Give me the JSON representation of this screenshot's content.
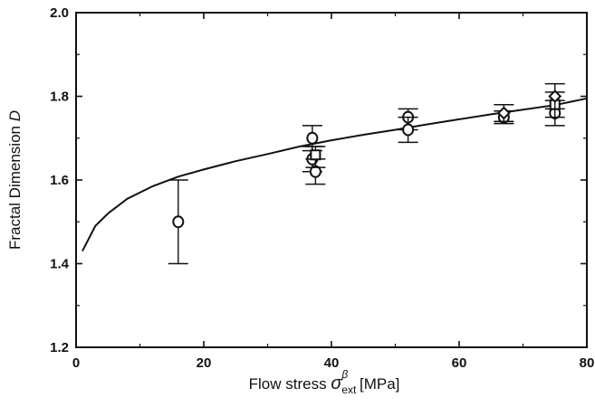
{
  "chart_data": {
    "type": "scatter",
    "xlabel": "Flow stress",
    "xlabel_symbol": "σ",
    "xlabel_sub": "ext",
    "xlabel_sup": "β",
    "xlabel_unit": "[MPa]",
    "ylabel": "Fractal Dimension",
    "ylabel_symbol": "D",
    "xlim": [
      0,
      80
    ],
    "ylim": [
      1.2,
      2.0
    ],
    "x_ticks": [
      0,
      20,
      40,
      60,
      80
    ],
    "y_ticks": [
      1.2,
      1.4,
      1.6,
      1.8,
      2.0
    ],
    "x_tick_labels": [
      "0",
      "20",
      "40",
      "60",
      "80"
    ],
    "y_tick_labels": [
      "1.2",
      "1.4",
      "1.6",
      "1.8",
      "2.0"
    ],
    "grid": false,
    "series": [
      {
        "marker": "circle",
        "points": [
          {
            "x": 16,
            "y": 1.5,
            "err_low": 1.4,
            "err_high": 1.6
          },
          {
            "x": 37,
            "y": 1.7,
            "err_low": 1.67,
            "err_high": 1.73
          },
          {
            "x": 37,
            "y": 1.65,
            "err_low": 1.62,
            "err_high": 1.68
          },
          {
            "x": 37.5,
            "y": 1.62,
            "err_low": 1.59,
            "err_high": 1.65
          },
          {
            "x": 52,
            "y": 1.75,
            "err_low": 1.72,
            "err_high": 1.77
          },
          {
            "x": 52,
            "y": 1.72,
            "err_low": 1.69,
            "err_high": 1.75
          },
          {
            "x": 67,
            "y": 1.75,
            "err_low": 1.735,
            "err_high": 1.765
          },
          {
            "x": 75,
            "y": 1.76,
            "err_low": 1.73,
            "err_high": 1.79
          }
        ]
      },
      {
        "marker": "square",
        "points": [
          {
            "x": 37.5,
            "y": 1.66,
            "err_low": 1.63,
            "err_high": 1.68
          },
          {
            "x": 75,
            "y": 1.78,
            "err_low": 1.75,
            "err_high": 1.81
          }
        ]
      },
      {
        "marker": "diamond",
        "points": [
          {
            "x": 67,
            "y": 1.76,
            "err_low": 1.74,
            "err_high": 1.78
          },
          {
            "x": 75,
            "y": 1.8,
            "err_low": 1.77,
            "err_high": 1.83
          }
        ]
      }
    ],
    "fit_curve": {
      "style": "solid",
      "points": [
        [
          1,
          1.43
        ],
        [
          3,
          1.49
        ],
        [
          5,
          1.52
        ],
        [
          8,
          1.555
        ],
        [
          12,
          1.585
        ],
        [
          16,
          1.608
        ],
        [
          20,
          1.625
        ],
        [
          25,
          1.645
        ],
        [
          30,
          1.662
        ],
        [
          35,
          1.68
        ],
        [
          40,
          1.695
        ],
        [
          45,
          1.708
        ],
        [
          50,
          1.72
        ],
        [
          55,
          1.733
        ],
        [
          60,
          1.745
        ],
        [
          65,
          1.757
        ],
        [
          70,
          1.768
        ],
        [
          75,
          1.779
        ],
        [
          80,
          1.795
        ]
      ]
    }
  }
}
